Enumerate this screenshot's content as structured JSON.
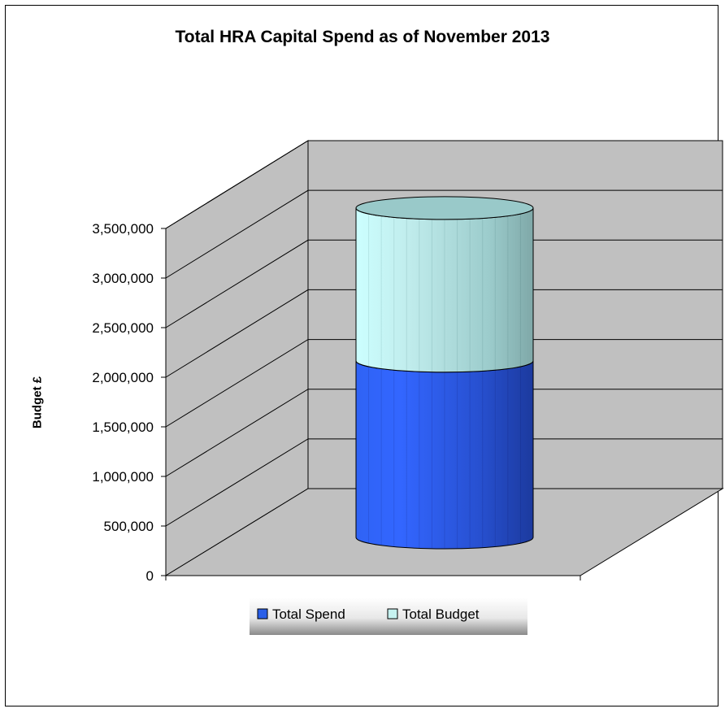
{
  "chart_data": {
    "type": "bar",
    "style": "3d-cylinder-stacked",
    "title": "Total HRA Capital Spend as of November 2013",
    "xlabel": "",
    "ylabel": "Budget £",
    "ylim": [
      0,
      3500000
    ],
    "yticks": [
      0,
      500000,
      1000000,
      1500000,
      2000000,
      2500000,
      3000000,
      3500000
    ],
    "ytick_labels": [
      "0",
      "500,000",
      "1,000,000",
      "1,500,000",
      "2,000,000",
      "2,500,000",
      "3,000,000",
      "3,500,000"
    ],
    "categories": [
      ""
    ],
    "series": [
      {
        "name": "Total Spend",
        "values": [
          1850000
        ],
        "color": "#2a5fe8"
      },
      {
        "name": "Total Budget",
        "values": [
          1600000
        ],
        "color": "#c6f2f0"
      }
    ],
    "grid": true,
    "legend": "bottom"
  }
}
